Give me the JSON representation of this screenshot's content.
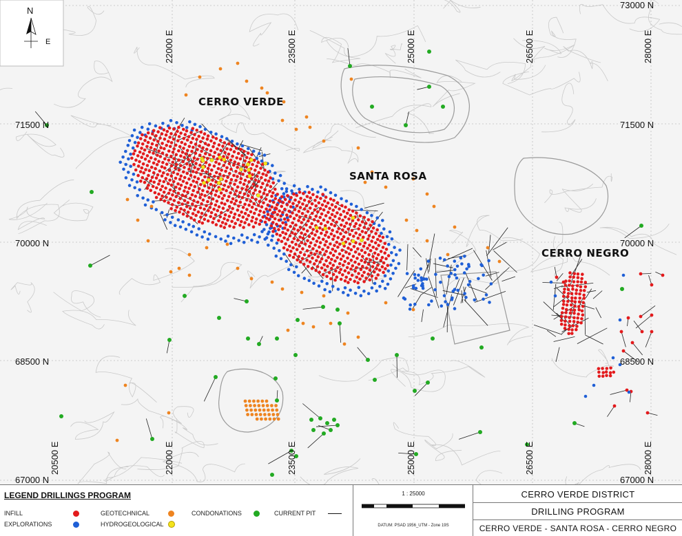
{
  "north": {
    "n_label": "N",
    "e_label": "E"
  },
  "eastings_top": [
    "22000 E",
    "23500 E",
    "25000 E",
    "26500 E",
    "28000 E"
  ],
  "eastings_bottom": [
    "20500 E",
    "22000 E",
    "23500 E",
    "25000 E",
    "26500 E",
    "28000 E"
  ],
  "northings_left": [
    "71500 N",
    "70000 N",
    "68500 N",
    "67000 N"
  ],
  "northings_right": [
    "73000 N",
    "71500 N",
    "70000 N",
    "68500 N",
    "67000 N"
  ],
  "areas": {
    "cerro_verde": "CERRO  VERDE",
    "santa_rosa": "SANTA  ROSA",
    "cerro_negro": "CERRO  NEGRO"
  },
  "legend": {
    "title": "LEGEND DRILLINGS PROGRAM",
    "infill": "INFILL",
    "explorations": "EXPLORATIONS",
    "geotechnical": "GEOTECHNICAL",
    "hydrogeological": "HYDROGEOLOGICAL",
    "condonations": "CONDONATIONS",
    "current_pit": "CURRENT PIT"
  },
  "colors": {
    "infill": "#e31a1c",
    "explorations": "#1f5fd6",
    "geotechnical": "#ee8420",
    "hydrogeological": "#f4e31c",
    "condonations": "#22aa22"
  },
  "scale": {
    "label": "1 : 25000",
    "datum": "DATUM: PSAD 1956_UTM - Zone 19S"
  },
  "title_block": {
    "line1": "CERRO VERDE DISTRICT",
    "line2": "DRILLING PROGRAM",
    "line3": "CERRO VERDE - SANTA ROSA - CERRO NEGRO"
  }
}
